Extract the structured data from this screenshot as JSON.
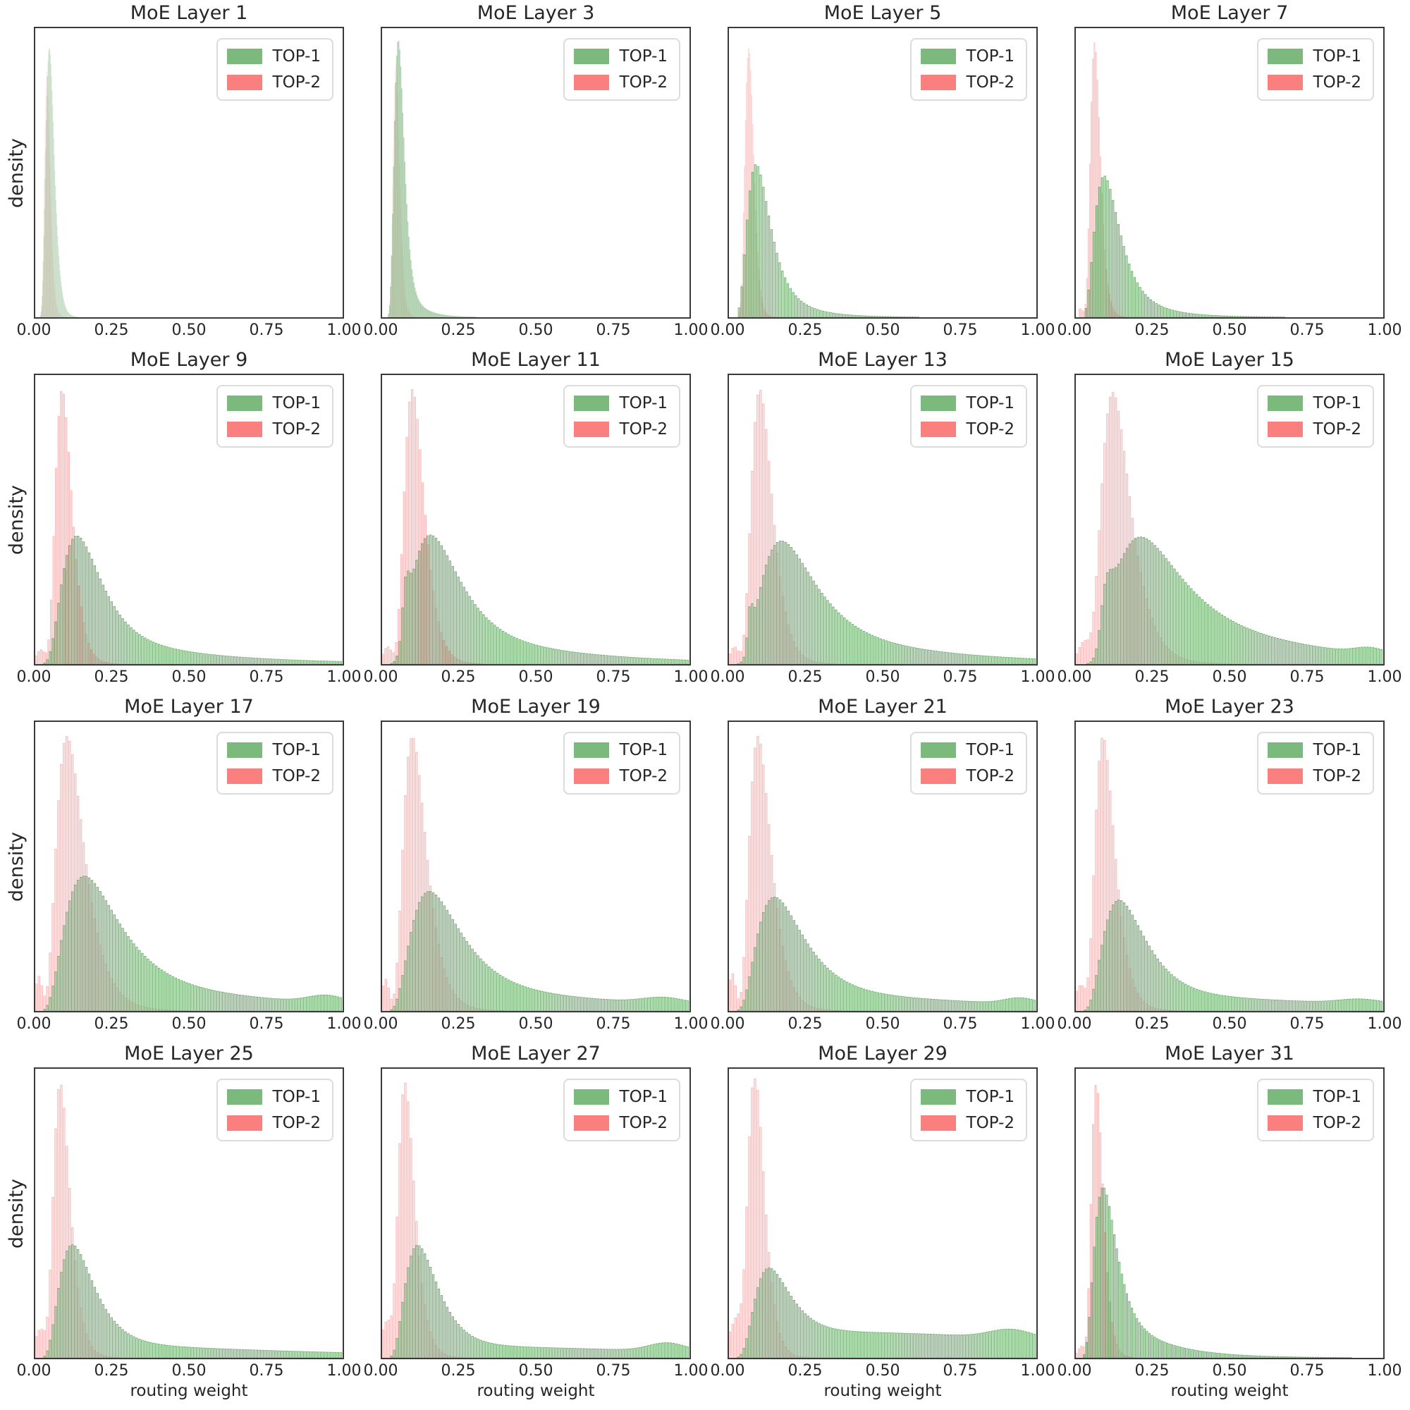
{
  "chart_data": {
    "type": "histogram",
    "layout": "grid-4x4",
    "title": "",
    "xlabel": "routing weight",
    "ylabel": "density",
    "x_range": [
      0,
      1
    ],
    "x_ticks": [
      0,
      0.25,
      0.5,
      0.75,
      1.0
    ],
    "x_tick_labels": [
      "0.00",
      "0.25",
      "0.50",
      "0.75",
      "1.00"
    ],
    "y_tick_labels": [],
    "grid_lines": "off",
    "legend": [
      {
        "label": "TOP-1",
        "color": "#7cb97c"
      },
      {
        "label": "TOP-2",
        "color": "#fa8080"
      }
    ],
    "legend_position": "upper right",
    "styles": {
      "top1_color": "#7cb97c",
      "top1_stroke": "#589c58",
      "top2_color": "#fa8080",
      "top2_stroke": "#f06e6e",
      "top1_fill_alpha": 0.4,
      "top1_stroke_alpha": 0.9,
      "top2_fill_alpha": 0.2,
      "top2_stroke_alpha": 0.5,
      "spine_color": "#3a3a3a",
      "text_color": "#262626"
    },
    "note": "Each subplot: density histograms of routing weight for TOP-1 and TOP-2 experts; peaks given as fraction of axis height; distributions approximated by lognormal/normal components (dist, mode/mean, sigma, peak).",
    "subplots": [
      {
        "title": "MoE Layer 1",
        "top2": {
          "label": "TOP-2",
          "alpha": 0.13,
          "bins": {
            "start": 0.01,
            "end": 0.15,
            "count": 100
          },
          "components": [
            {
              "dist": "lognormal",
              "mode": 0.038,
              "sigma": 0.25,
              "peak": 0.85
            }
          ]
        },
        "top1": {
          "label": "TOP-1",
          "alpha": 0.2,
          "bins": {
            "start": 0.015,
            "end": 0.2,
            "count": 100
          },
          "components": [
            {
              "dist": "lognormal",
              "mode": 0.046,
              "sigma": 0.3,
              "peak": 0.93
            }
          ]
        }
      },
      {
        "title": "MoE Layer 3",
        "top2": {
          "label": "TOP-2",
          "alpha": 0.18,
          "bins": {
            "start": 0.01,
            "end": 0.22,
            "count": 100
          },
          "components": [
            {
              "dist": "lognormal",
              "mode": 0.045,
              "sigma": 0.24,
              "peak": 0.88
            }
          ]
        },
        "top1": {
          "label": "TOP-1",
          "alpha": 0.42,
          "bins": {
            "start": 0.02,
            "end": 0.35,
            "count": 100
          },
          "components": [
            {
              "dist": "lognormal",
              "mode": 0.053,
              "sigma": 0.3,
              "peak": 0.93
            },
            {
              "dist": "lognormal",
              "mode": 0.085,
              "sigma": 0.45,
              "peak": 0.05
            }
          ]
        }
      },
      {
        "title": "MoE Layer 5",
        "top2": {
          "label": "TOP-2",
          "alpha": 0.45,
          "bins": {
            "start": 0.02,
            "end": 0.35,
            "count": 100
          },
          "components": [
            {
              "dist": "lognormal",
              "mode": 0.065,
              "sigma": 0.22,
              "peak": 0.93
            }
          ]
        },
        "top1": {
          "label": "TOP-1",
          "alpha": 0.95,
          "bins": {
            "start": 0.03,
            "end": 1.0,
            "count": 110
          },
          "components": [
            {
              "dist": "lognormal",
              "mode": 0.088,
              "sigma": 0.4,
              "peak": 0.5
            },
            {
              "dist": "lognormal",
              "mode": 0.15,
              "sigma": 0.5,
              "peak": 0.05
            }
          ]
        }
      },
      {
        "title": "MoE Layer 7",
        "top2": {
          "label": "TOP-2",
          "alpha": 0.7,
          "bins": {
            "start": 0.01,
            "end": 0.55,
            "count": 110
          },
          "components": [
            {
              "dist": "lognormal",
              "mode": 0.062,
              "sigma": 0.26,
              "peak": 0.95
            },
            {
              "dist": "normal",
              "mode": 0.015,
              "sigma": 0.01,
              "peak": 0.03
            }
          ]
        },
        "top1": {
          "label": "TOP-1",
          "alpha": 1,
          "bins": {
            "start": 0.03,
            "end": 1.0,
            "count": 110
          },
          "components": [
            {
              "dist": "lognormal",
              "mode": 0.092,
              "sigma": 0.42,
              "peak": 0.47
            },
            {
              "dist": "lognormal",
              "mode": 0.17,
              "sigma": 0.5,
              "peak": 0.04
            }
          ]
        }
      },
      {
        "title": "MoE Layer 9",
        "top2": {
          "label": "TOP-2",
          "alpha": 1,
          "bins": {
            "start": 0,
            "end": 0.9,
            "count": 110
          },
          "components": [
            {
              "dist": "lognormal",
              "mode": 0.089,
              "sigma": 0.3,
              "peak": 0.95
            },
            {
              "dist": "normal",
              "mode": 0.02,
              "sigma": 0.015,
              "peak": 0.05
            }
          ]
        },
        "top1": {
          "label": "TOP-1",
          "alpha": 1,
          "bins": {
            "start": 0,
            "end": 1.0,
            "count": 110
          },
          "components": [
            {
              "dist": "lognormal",
              "mode": 0.134,
              "sigma": 0.46,
              "peak": 0.42
            },
            {
              "dist": "lognormal",
              "mode": 0.3,
              "sigma": 0.65,
              "peak": 0.05
            }
          ]
        }
      },
      {
        "title": "MoE Layer 11",
        "top2": {
          "label": "TOP-2",
          "alpha": 1,
          "bins": {
            "start": 0,
            "end": 0.95,
            "count": 110
          },
          "components": [
            {
              "dist": "lognormal",
              "mode": 0.1,
              "sigma": 0.32,
              "peak": 0.95
            },
            {
              "dist": "normal",
              "mode": 0.02,
              "sigma": 0.015,
              "peak": 0.06
            }
          ]
        },
        "top1": {
          "label": "TOP-1",
          "alpha": 1,
          "bins": {
            "start": 0,
            "end": 1.0,
            "count": 110
          },
          "components": [
            {
              "dist": "lognormal",
              "mode": 0.155,
              "sigma": 0.48,
              "peak": 0.43
            },
            {
              "dist": "lognormal",
              "mode": 0.078,
              "sigma": 0.14,
              "peak": 0.15
            },
            {
              "dist": "lognormal",
              "mode": 0.38,
              "sigma": 0.6,
              "peak": 0.05
            }
          ]
        }
      },
      {
        "title": "MoE Layer 13",
        "top2": {
          "label": "TOP-2",
          "alpha": 1,
          "bins": {
            "start": 0,
            "end": 1.0,
            "count": 110
          },
          "components": [
            {
              "dist": "lognormal",
              "mode": 0.102,
              "sigma": 0.33,
              "peak": 0.95
            },
            {
              "dist": "normal",
              "mode": 0.02,
              "sigma": 0.015,
              "peak": 0.06
            }
          ]
        },
        "top1": {
          "label": "TOP-1",
          "alpha": 1,
          "bins": {
            "start": 0,
            "end": 1.0,
            "count": 110
          },
          "components": [
            {
              "dist": "lognormal",
              "mode": 0.168,
              "sigma": 0.5,
              "peak": 0.41
            },
            {
              "dist": "lognormal",
              "mode": 0.07,
              "sigma": 0.12,
              "peak": 0.12
            },
            {
              "dist": "lognormal",
              "mode": 0.42,
              "sigma": 0.6,
              "peak": 0.05
            }
          ]
        }
      },
      {
        "title": "MoE Layer 15",
        "top2": {
          "label": "TOP-2",
          "alpha": 1,
          "bins": {
            "start": 0,
            "end": 1.0,
            "count": 110
          },
          "components": [
            {
              "dist": "lognormal",
              "mode": 0.122,
              "sigma": 0.38,
              "peak": 0.94
            },
            {
              "dist": "normal",
              "mode": 0.03,
              "sigma": 0.02,
              "peak": 0.08
            }
          ]
        },
        "top1": {
          "label": "TOP-1",
          "alpha": 1,
          "bins": {
            "start": 0,
            "end": 1.0,
            "count": 110
          },
          "components": [
            {
              "dist": "lognormal",
              "mode": 0.205,
              "sigma": 0.5,
              "peak": 0.42
            },
            {
              "dist": "lognormal",
              "mode": 0.1,
              "sigma": 0.18,
              "peak": 0.15
            },
            {
              "dist": "lognormal",
              "mode": 0.5,
              "sigma": 0.55,
              "peak": 0.07
            },
            {
              "dist": "normal",
              "mode": 0.96,
              "sigma": 0.05,
              "peak": 0.02
            }
          ]
        }
      },
      {
        "title": "MoE Layer 17",
        "top2": {
          "label": "TOP-2",
          "alpha": 1,
          "bins": {
            "start": 0,
            "end": 1.0,
            "count": 110
          },
          "components": [
            {
              "dist": "lognormal",
              "mode": 0.105,
              "sigma": 0.42,
              "peak": 0.95
            },
            {
              "dist": "normal",
              "mode": 0.013,
              "sigma": 0.012,
              "peak": 0.12
            }
          ]
        },
        "top1": {
          "label": "TOP-1",
          "alpha": 1,
          "bins": {
            "start": 0,
            "end": 1.0,
            "count": 110
          },
          "components": [
            {
              "dist": "lognormal",
              "mode": 0.158,
              "sigma": 0.54,
              "peak": 0.45
            },
            {
              "dist": "lognormal",
              "mode": 0.45,
              "sigma": 0.7,
              "peak": 0.05
            },
            {
              "dist": "normal",
              "mode": 0.95,
              "sigma": 0.06,
              "peak": 0.025
            }
          ]
        }
      },
      {
        "title": "MoE Layer 19",
        "top2": {
          "label": "TOP-2",
          "alpha": 1,
          "bins": {
            "start": 0,
            "end": 1.0,
            "count": 110
          },
          "components": [
            {
              "dist": "lognormal",
              "mode": 0.1,
              "sigma": 0.37,
              "peak": 0.95
            },
            {
              "dist": "normal",
              "mode": 0.013,
              "sigma": 0.012,
              "peak": 0.11
            }
          ]
        },
        "top1": {
          "label": "TOP-1",
          "alpha": 1,
          "bins": {
            "start": 0,
            "end": 1.0,
            "count": 110
          },
          "components": [
            {
              "dist": "lognormal",
              "mode": 0.152,
              "sigma": 0.52,
              "peak": 0.4
            },
            {
              "dist": "lognormal",
              "mode": 0.45,
              "sigma": 0.7,
              "peak": 0.045
            },
            {
              "dist": "normal",
              "mode": 0.92,
              "sigma": 0.07,
              "peak": 0.02
            }
          ]
        }
      },
      {
        "title": "MoE Layer 21",
        "top2": {
          "label": "TOP-2",
          "alpha": 1,
          "bins": {
            "start": 0,
            "end": 1.0,
            "count": 110
          },
          "components": [
            {
              "dist": "lognormal",
              "mode": 0.096,
              "sigma": 0.36,
              "peak": 0.95
            },
            {
              "dist": "normal",
              "mode": 0.012,
              "sigma": 0.012,
              "peak": 0.13
            }
          ]
        },
        "top1": {
          "label": "TOP-1",
          "alpha": 1,
          "bins": {
            "start": 0,
            "end": 1.0,
            "count": 110
          },
          "components": [
            {
              "dist": "lognormal",
              "mode": 0.147,
              "sigma": 0.5,
              "peak": 0.38
            },
            {
              "dist": "lognormal",
              "mode": 0.45,
              "sigma": 0.75,
              "peak": 0.042
            },
            {
              "dist": "normal",
              "mode": 0.95,
              "sigma": 0.05,
              "peak": 0.02
            }
          ]
        }
      },
      {
        "title": "MoE Layer 23",
        "top2": {
          "label": "TOP-2",
          "alpha": 1,
          "bins": {
            "start": 0,
            "end": 1.0,
            "count": 110
          },
          "components": [
            {
              "dist": "lognormal",
              "mode": 0.09,
              "sigma": 0.35,
              "peak": 0.95
            },
            {
              "dist": "normal",
              "mode": 0.018,
              "sigma": 0.018,
              "peak": 0.09
            }
          ]
        },
        "top1": {
          "label": "TOP-1",
          "alpha": 1,
          "bins": {
            "start": 0,
            "end": 1.0,
            "count": 110
          },
          "components": [
            {
              "dist": "lognormal",
              "mode": 0.14,
              "sigma": 0.48,
              "peak": 0.37
            },
            {
              "dist": "lognormal",
              "mode": 0.45,
              "sigma": 0.8,
              "peak": 0.04
            },
            {
              "dist": "normal",
              "mode": 0.93,
              "sigma": 0.07,
              "peak": 0.015
            }
          ]
        }
      },
      {
        "title": "MoE Layer 25",
        "top2": {
          "label": "TOP-2",
          "alpha": 1,
          "bins": {
            "start": 0,
            "end": 1.0,
            "count": 110
          },
          "components": [
            {
              "dist": "lognormal",
              "mode": 0.083,
              "sigma": 0.32,
              "peak": 0.95
            },
            {
              "dist": "normal",
              "mode": 0.02,
              "sigma": 0.02,
              "peak": 0.1
            }
          ]
        },
        "top1": {
          "label": "TOP-1",
          "alpha": 1,
          "bins": {
            "start": 0,
            "end": 1.0,
            "count": 110
          },
          "components": [
            {
              "dist": "lognormal",
              "mode": 0.121,
              "sigma": 0.46,
              "peak": 0.38
            },
            {
              "dist": "lognormal",
              "mode": 0.4,
              "sigma": 0.8,
              "peak": 0.035
            }
          ]
        }
      },
      {
        "title": "MoE Layer 27",
        "top2": {
          "label": "TOP-2",
          "alpha": 1,
          "bins": {
            "start": 0,
            "end": 1.0,
            "count": 110
          },
          "components": [
            {
              "dist": "lognormal",
              "mode": 0.076,
              "sigma": 0.34,
              "peak": 0.95
            },
            {
              "dist": "normal",
              "mode": 0.02,
              "sigma": 0.02,
              "peak": 0.13
            }
          ]
        },
        "top1": {
          "label": "TOP-1",
          "alpha": 1,
          "bins": {
            "start": 0,
            "end": 1.0,
            "count": 110
          },
          "components": [
            {
              "dist": "lognormal",
              "mode": 0.116,
              "sigma": 0.45,
              "peak": 0.38
            },
            {
              "dist": "lognormal",
              "mode": 0.45,
              "sigma": 0.85,
              "peak": 0.035
            },
            {
              "dist": "normal",
              "mode": 0.93,
              "sigma": 0.06,
              "peak": 0.028
            }
          ]
        }
      },
      {
        "title": "MoE Layer 29",
        "top2": {
          "label": "TOP-2",
          "alpha": 1,
          "bins": {
            "start": 0,
            "end": 1.0,
            "count": 110
          },
          "components": [
            {
              "dist": "lognormal",
              "mode": 0.087,
              "sigma": 0.3,
              "peak": 0.95
            },
            {
              "dist": "normal",
              "mode": 0.035,
              "sigma": 0.03,
              "peak": 0.15
            }
          ]
        },
        "top1": {
          "label": "TOP-1",
          "alpha": 1,
          "bins": {
            "start": 0,
            "end": 1.0,
            "count": 110
          },
          "components": [
            {
              "dist": "lognormal",
              "mode": 0.128,
              "sigma": 0.44,
              "peak": 0.28
            },
            {
              "dist": "lognormal",
              "mode": 0.5,
              "sigma": 0.95,
              "peak": 0.085
            },
            {
              "dist": "normal",
              "mode": 0.92,
              "sigma": 0.07,
              "peak": 0.03
            }
          ]
        }
      },
      {
        "title": "MoE Layer 31",
        "top2": {
          "label": "TOP-2",
          "alpha": 1,
          "bins": {
            "start": 0,
            "end": 0.85,
            "count": 110
          },
          "components": [
            {
              "dist": "lognormal",
              "mode": 0.068,
              "sigma": 0.28,
              "peak": 0.95
            },
            {
              "dist": "normal",
              "mode": 0.02,
              "sigma": 0.012,
              "peak": 0.04
            }
          ]
        },
        "top1": {
          "label": "TOP-1",
          "alpha": 1,
          "bins": {
            "start": 0,
            "end": 0.9,
            "count": 110
          },
          "components": [
            {
              "dist": "lognormal",
              "mode": 0.088,
              "sigma": 0.4,
              "peak": 0.56
            },
            {
              "dist": "lognormal",
              "mode": 0.18,
              "sigma": 0.55,
              "peak": 0.07
            }
          ]
        }
      }
    ]
  }
}
